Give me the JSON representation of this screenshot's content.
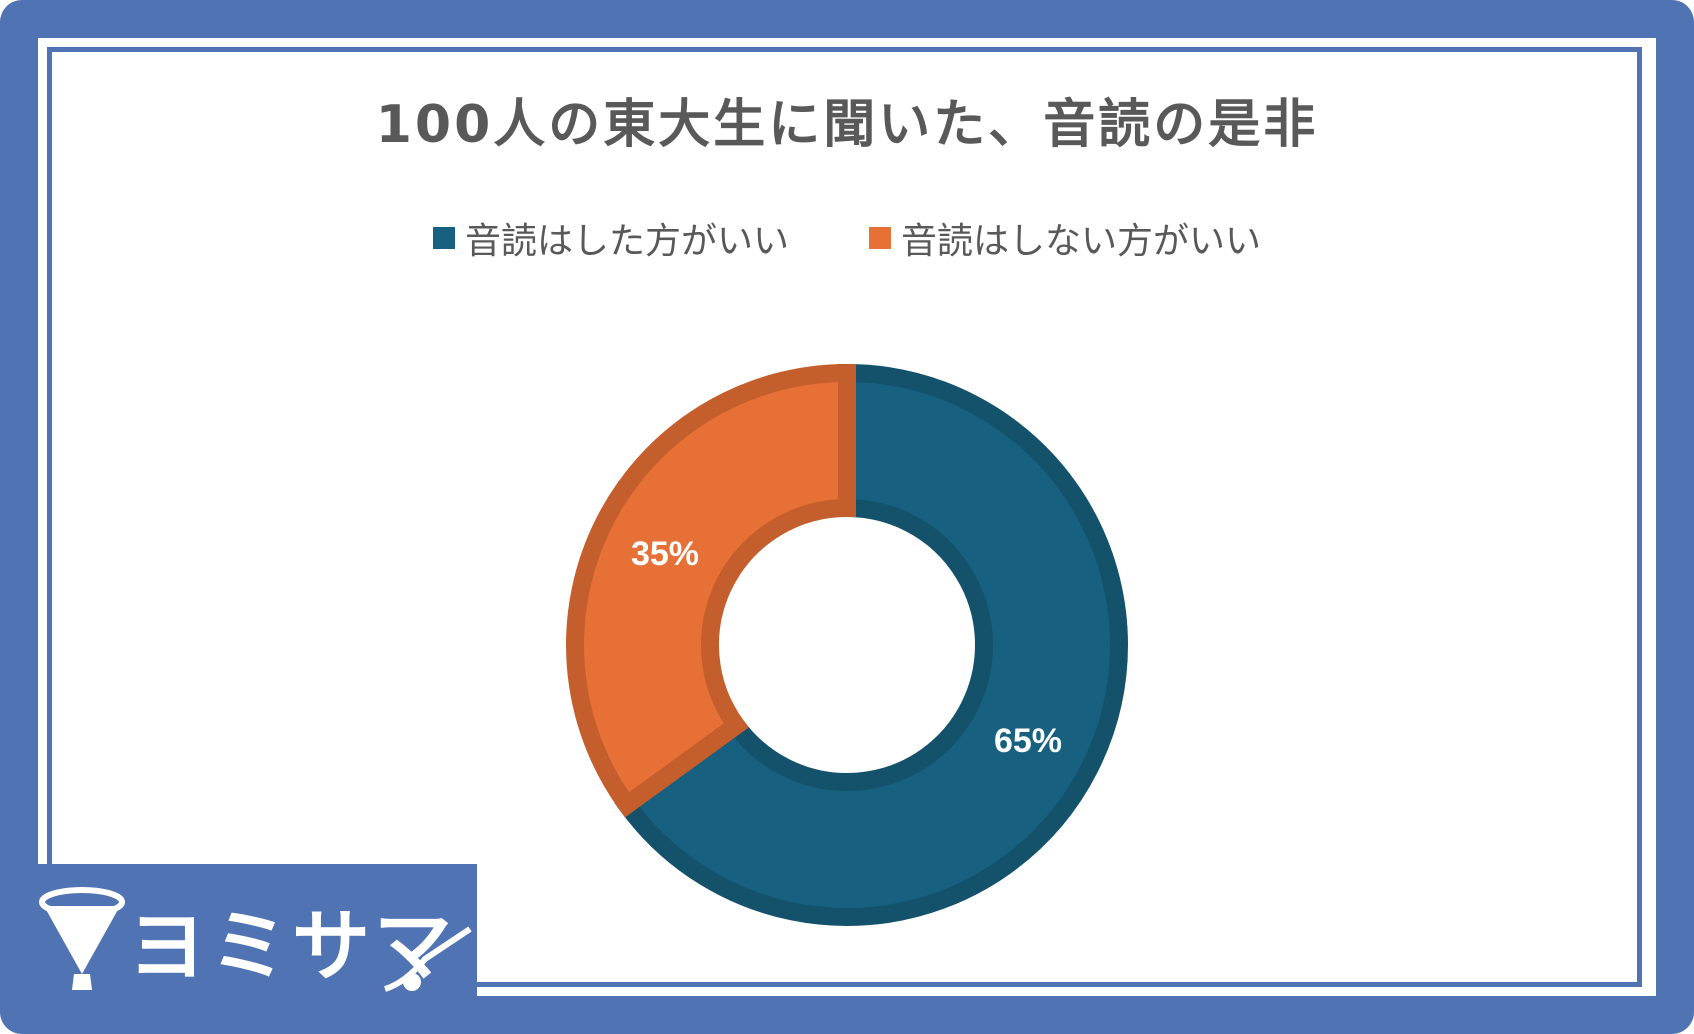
{
  "chart_data": {
    "type": "donut",
    "title": "100人の東大生に聞いた、音読の是非",
    "series": [
      {
        "name": "音読はした方がいい",
        "value": 65,
        "label": "65%",
        "color": "#17607f"
      },
      {
        "name": "音読はしない方がいい",
        "value": 35,
        "label": "35%",
        "color": "#e67035"
      }
    ],
    "legend_position": "top"
  },
  "colors": {
    "frame": "#4f73b3",
    "text": "#595959"
  },
  "logo": {
    "text": "ヨミサマ"
  }
}
